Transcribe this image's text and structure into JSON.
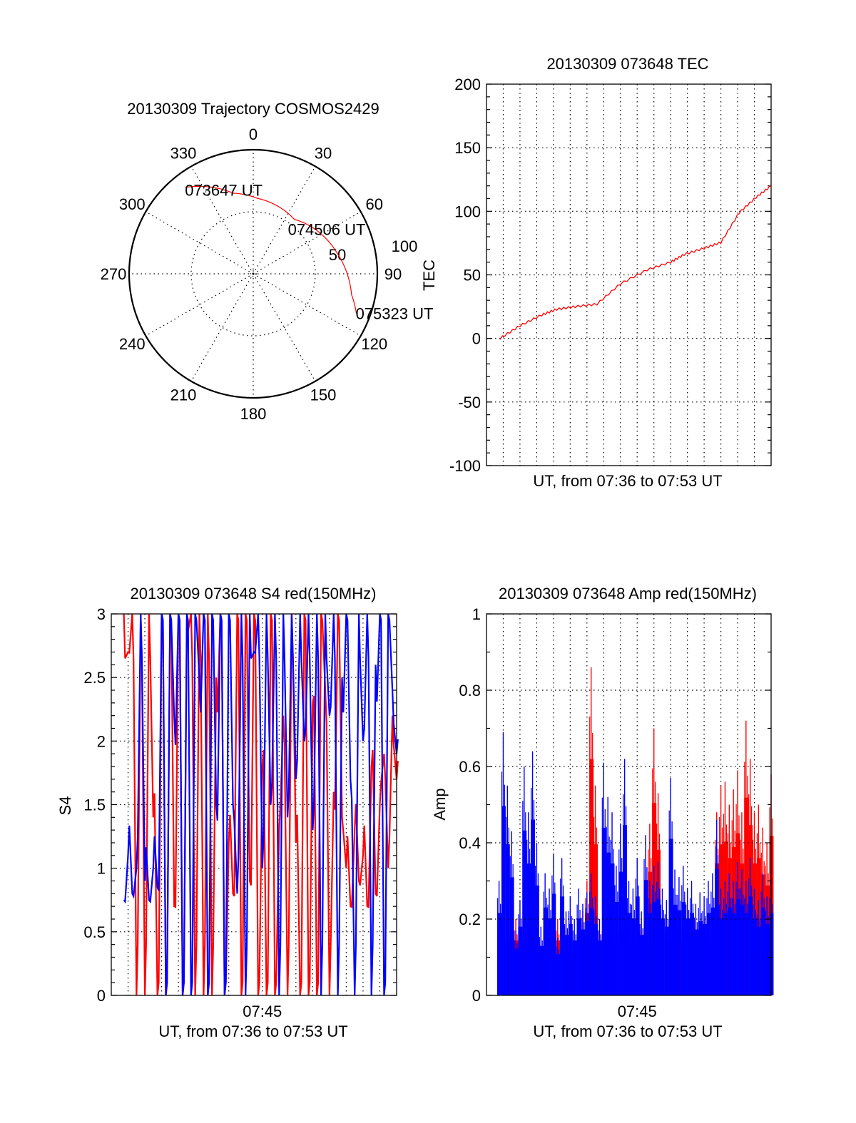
{
  "colors": {
    "red": "#ff0000",
    "blue": "#0000ff",
    "axis": "#000000"
  },
  "chart_data": [
    {
      "type": "polar",
      "title": "20130309 Trajectory COSMOS2429",
      "angle_ticks": [
        "0",
        "30",
        "60",
        "90",
        "120",
        "150",
        "180",
        "210",
        "240",
        "270",
        "300",
        "330"
      ],
      "angle_values": [
        0,
        30,
        60,
        90,
        120,
        150,
        180,
        210,
        240,
        270,
        300,
        330
      ],
      "radial_ticks": [
        50,
        100
      ],
      "radial_tick_labels": [
        "50",
        "100"
      ],
      "rlim": [
        0,
        100
      ],
      "series": [
        {
          "name": "trajectory",
          "color": "#ff0000",
          "azimuth": [
            322,
            346,
            3,
            37,
            77,
            102,
            111
          ],
          "radius": [
            88.5,
            67,
            61,
            55,
            70,
            81,
            89
          ]
        }
      ],
      "annotations": [
        {
          "text": "073647 UT",
          "azimuth": 322,
          "radius": 88.5
        },
        {
          "text": "074506 UT",
          "azimuth": 37,
          "radius": 55
        },
        {
          "text": "075323 UT",
          "azimuth": 111,
          "radius": 89
        }
      ]
    },
    {
      "type": "line",
      "title": "20130309 073648 TEC",
      "xlabel": "UT, from 07:36 to 07:53 UT",
      "ylabel": "TEC",
      "x_units": "minutes after 07:36",
      "xlim": [
        0,
        17
      ],
      "ylim": [
        -100,
        200
      ],
      "yticks": [
        -100,
        -50,
        0,
        50,
        100,
        150,
        200
      ],
      "ytick_labels": [
        "-100",
        "-50",
        "0",
        "50",
        "100",
        "150",
        "200"
      ],
      "grid": true,
      "series": [
        {
          "name": "TEC",
          "color": "#ff0000",
          "x": [
            0.8,
            2.0,
            3.3,
            4.2,
            5.3,
            6.6,
            8.0,
            9.6,
            11.0,
            11.8,
            13.0,
            14.0,
            15.1,
            16.1,
            17.0
          ],
          "y": [
            0,
            10,
            18.5,
            23,
            25,
            27,
            43,
            54,
            60,
            66,
            71,
            75.5,
            99,
            111,
            120
          ]
        }
      ]
    },
    {
      "type": "line",
      "title": "20130309 073648 S4 red(150MHz)",
      "xlabel": "UT, from 07:36 to 07:53 UT",
      "ylabel": "S4",
      "x_units": "minutes after 07:36",
      "xlim": [
        0,
        17
      ],
      "ylim": [
        0,
        3
      ],
      "x_start": 0.75,
      "x_step": 0.25,
      "xticks": [
        9
      ],
      "xtick_labels": [
        "07:45"
      ],
      "yticks": [
        0,
        0.5,
        1,
        1.5,
        2,
        2.5,
        3
      ],
      "ytick_labels": [
        "0",
        "0.5",
        "1",
        "1.5",
        "2",
        "2.5",
        "3"
      ],
      "grid": true,
      "series": [
        {
          "name": "red",
          "color": "#ff0000",
          "values": [
            3,
            2.7,
            3,
            0,
            3,
            0,
            3,
            1.4,
            0,
            3,
            0,
            3,
            0.7,
            3,
            0,
            2.9,
            3,
            0,
            3,
            0,
            3,
            0,
            2.5,
            3,
            0,
            1.2,
            0.8,
            3,
            0,
            3,
            0.9,
            3,
            0,
            1.8,
            0,
            3,
            0,
            1.3,
            2.2,
            0,
            3,
            1.2,
            0,
            3,
            0,
            2.3,
            0,
            3,
            2.4,
            0,
            1.6,
            3,
            1.4,
            1.0,
            0.7,
            1.3,
            0.9,
            1.1,
            0.7,
            1.8,
            0.8,
            1.5,
            1.9,
            1.0,
            2.2,
            1.7
          ]
        },
        {
          "name": "blue",
          "color": "#0000ff",
          "values": [
            0.75,
            1.1,
            0.8,
            1.0,
            3,
            0.9,
            0.75,
            1.0,
            0.85,
            3,
            0,
            3,
            2.2,
            3,
            0,
            3,
            0,
            3,
            2.5,
            3,
            0,
            3,
            1.5,
            3,
            0,
            3,
            1.5,
            0.8,
            3,
            0,
            3,
            2.7,
            3,
            1.0,
            3,
            1.5,
            3,
            0,
            3,
            1.4,
            3,
            1.7,
            3,
            2.0,
            3,
            1.3,
            3,
            0,
            3,
            2.2,
            3,
            0,
            2.5,
            3,
            1.7,
            0,
            3,
            2.0,
            3,
            0,
            2.6,
            3,
            0,
            3,
            2.4,
            1.9
          ]
        }
      ]
    },
    {
      "type": "bar",
      "title": "20130309 073648 Amp red(150MHz)",
      "xlabel": "UT, from 07:36 to 07:53 UT",
      "ylabel": "Amp",
      "x_units": "minutes after 07:36",
      "xlim": [
        0,
        17
      ],
      "ylim": [
        0,
        1
      ],
      "x_start": 0.75,
      "x_step": 0.25,
      "xticks": [
        9
      ],
      "xtick_labels": [
        "07:45"
      ],
      "yticks": [
        0,
        0.2,
        0.4,
        0.6,
        0.8,
        1
      ],
      "ytick_labels": [
        "0",
        "0.2",
        "0.4",
        "0.6",
        "0.8",
        "1"
      ],
      "grid": true,
      "series": [
        {
          "name": "red",
          "color": "#ff0000",
          "values": [
            0.2,
            0.2,
            0.2,
            0.2,
            0.2,
            0.2,
            0.2,
            0.2,
            0.2,
            0.2,
            0.12,
            0.2,
            0.2,
            0.2,
            0.2,
            0.2,
            0.2,
            0.2,
            0.14,
            0.2,
            0.22,
            0.3,
            0.86,
            0.55,
            0.2,
            0.2,
            0.2,
            0.2,
            0.2,
            0.2,
            0.2,
            0.2,
            0.2,
            0.23,
            0.2,
            0.2,
            0.45,
            0.7,
            0.53,
            0.2,
            0.2,
            0.2,
            0.2,
            0.2,
            0.2,
            0.2,
            0.2,
            0.2,
            0.2,
            0.2,
            0.2,
            0.2,
            0.48,
            0.55,
            0.56,
            0.5,
            0.54,
            0.59,
            0.48,
            0.72,
            0.62,
            0.48,
            0.5,
            0.44,
            0.4,
            0.58
          ]
        },
        {
          "name": "blue",
          "color": "#0000ff",
          "values": [
            0.3,
            0.69,
            0.55,
            0.43,
            0.17,
            0.25,
            0.6,
            0.48,
            0.64,
            0.4,
            0.18,
            0.32,
            0.28,
            0.37,
            0.15,
            0.36,
            0.22,
            0.26,
            0.2,
            0.28,
            0.24,
            0.27,
            0.32,
            0.26,
            0.2,
            0.61,
            0.52,
            0.48,
            0.34,
            0.45,
            0.62,
            0.3,
            0.28,
            0.36,
            0.22,
            0.42,
            0.3,
            0.34,
            0.35,
            0.28,
            0.25,
            0.57,
            0.33,
            0.31,
            0.34,
            0.28,
            0.3,
            0.24,
            0.27,
            0.26,
            0.3,
            0.32,
            0.46,
            0.28,
            0.3,
            0.32,
            0.3,
            0.35,
            0.33,
            0.3,
            0.36,
            0.28,
            0.25,
            0.32,
            0.26,
            0.3
          ]
        }
      ]
    }
  ]
}
